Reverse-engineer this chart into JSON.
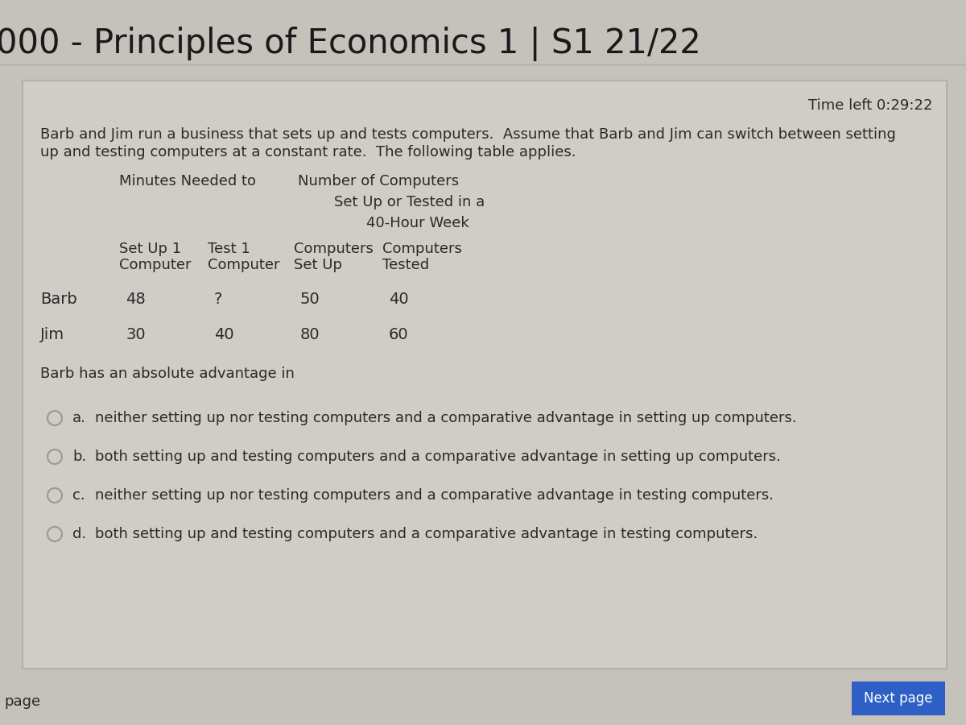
{
  "title": "000 - Principles of Economics 1 | S1 21/22",
  "time_left": "Time left 0:29:22",
  "intro_line1": "Barb and Jim run a business that sets up and tests computers.  Assume that Barb and Jim can switch between setting",
  "intro_line2": "up and testing computers at a constant rate.  The following table applies.",
  "hdr_minutes": "Minutes Needed to",
  "hdr_number": "Number of Computers",
  "hdr_setup_tested": "Set Up or Tested in a",
  "hdr_40hour": "40-Hour Week",
  "col_sub1": [
    "Set Up 1",
    "Test 1",
    "Computers",
    "Computers"
  ],
  "col_sub2": [
    "Computer",
    "Computer",
    "Set Up",
    "Tested"
  ],
  "rows": [
    {
      "name": "Barb",
      "vals": [
        "48",
        "?",
        "50",
        "40"
      ]
    },
    {
      "name": "Jim",
      "vals": [
        "30",
        "40",
        "80",
        "60"
      ]
    }
  ],
  "question": "Barb has an absolute advantage in",
  "options": [
    {
      "letter": "a.",
      "text": "neither setting up nor testing computers and a comparative advantage in setting up computers."
    },
    {
      "letter": "b.",
      "text": "both setting up and testing computers and a comparative advantage in setting up computers."
    },
    {
      "letter": "c.",
      "text": "neither setting up nor testing computers and a comparative advantage in testing computers."
    },
    {
      "letter": "d.",
      "text": "both setting up and testing computers and a comparative advantage in testing computers."
    }
  ],
  "next_button_text": "Next page",
  "page_label": "page",
  "bg_outer": "#c5c1bb",
  "bg_inner": "#d0ccc6",
  "title_color": "#1a1a1a",
  "text_color": "#2a2a2a",
  "time_color": "#2a2a2a",
  "next_btn_bg": "#2d5fc4",
  "next_btn_fg": "#ffffff",
  "radio_edge": "#999999",
  "inner_border": "#b0aba5"
}
